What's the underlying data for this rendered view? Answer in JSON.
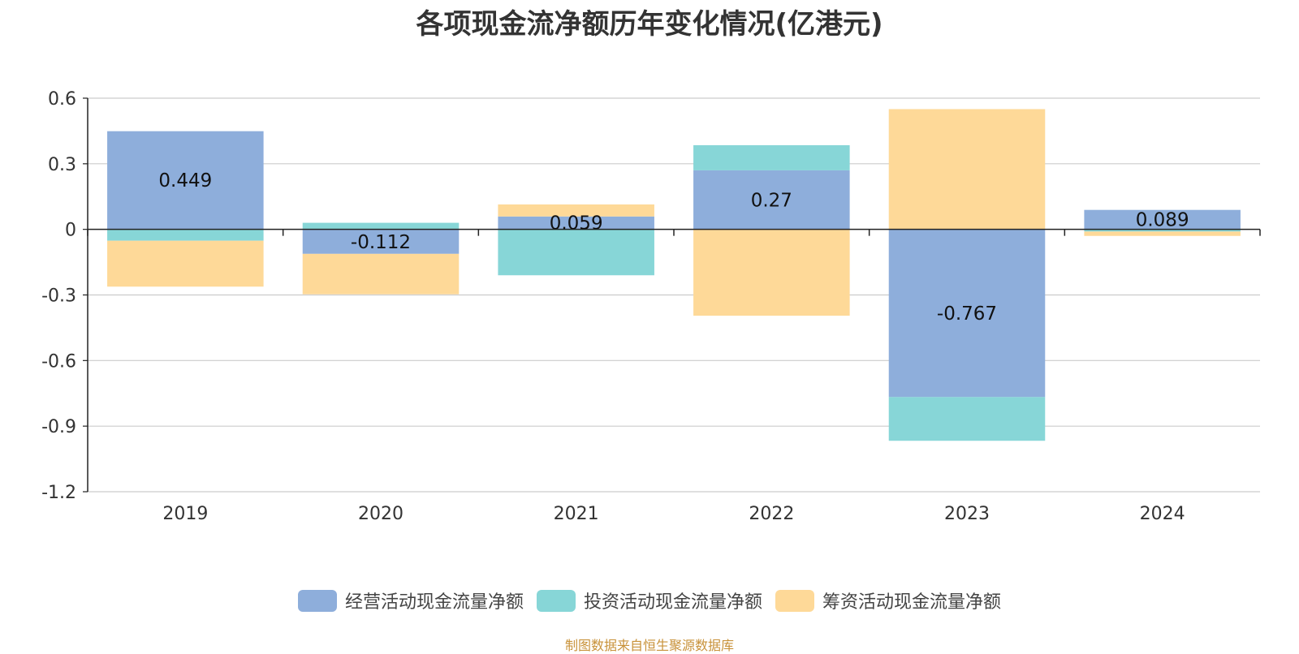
{
  "colors": {
    "operating": "#8eaedb",
    "investing": "#87d6d7",
    "financing": "#fed998",
    "grid": "#cccccc",
    "axis": "#222222",
    "text": "#333333",
    "source": "#c8923a"
  },
  "source_note": "制图数据来自恒生聚源数据库",
  "chart_data": {
    "type": "bar",
    "stacked": true,
    "title": "各项现金流净额历年变化情况(亿港元)",
    "categories": [
      "2019",
      "2020",
      "2021",
      "2022",
      "2023",
      "2024"
    ],
    "y_ticks": [
      "0.6",
      "0.3",
      "0",
      "-0.3",
      "-0.6",
      "-0.9",
      "-1.2"
    ],
    "ylim": [
      -1.2,
      0.6
    ],
    "grid": true,
    "legend_position": "bottom",
    "series": [
      {
        "name": "经营活动现金流量净额",
        "color_key": "operating",
        "values": [
          0.449,
          -0.112,
          0.059,
          0.27,
          -0.767,
          0.089
        ],
        "labels": [
          "0.449",
          "-0.112",
          "0.059",
          "0.27",
          "-0.767",
          "0.089"
        ]
      },
      {
        "name": "投资活动现金流量净额",
        "color_key": "investing",
        "values": [
          -0.052,
          0.03,
          -0.21,
          0.115,
          -0.2,
          -0.01
        ]
      },
      {
        "name": "筹资活动现金流量净额",
        "color_key": "financing",
        "values": [
          -0.21,
          -0.185,
          0.055,
          -0.395,
          0.55,
          -0.02
        ]
      }
    ]
  }
}
